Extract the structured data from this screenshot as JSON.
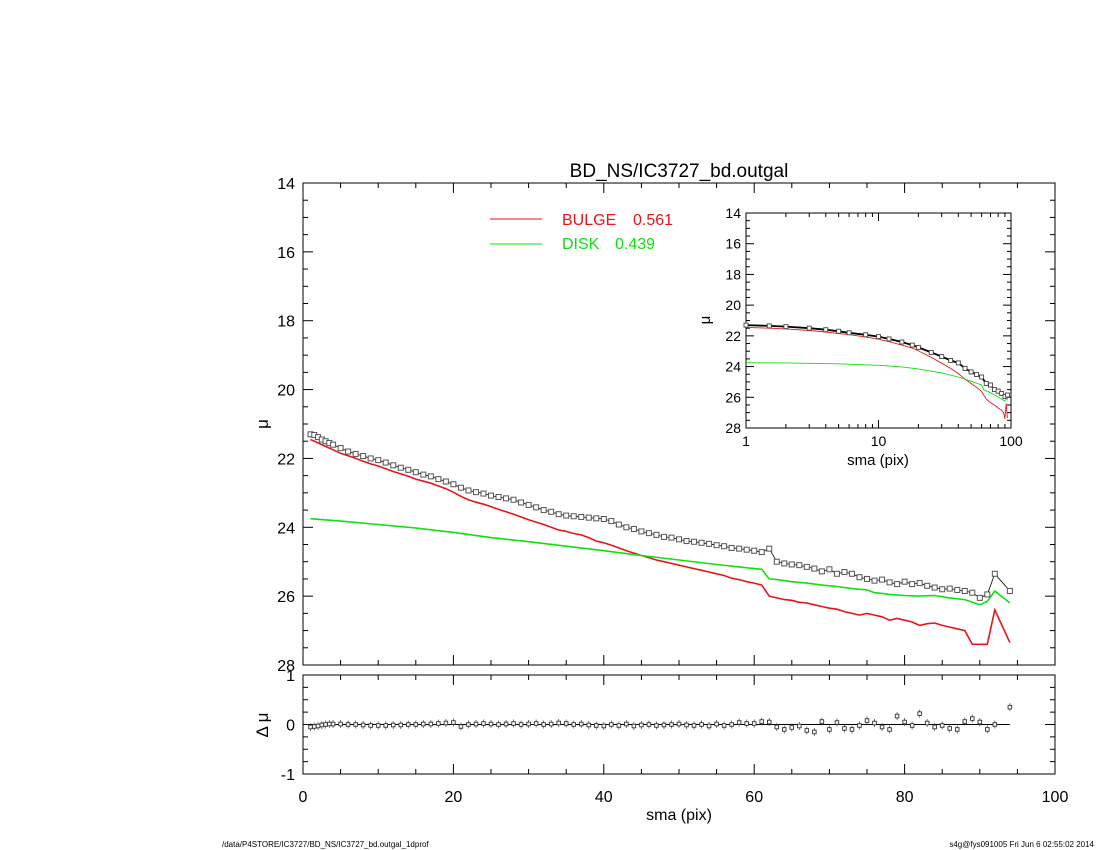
{
  "chart_data": [
    {
      "type": "line",
      "title": "BD_NS/IC3727_bd.outgal",
      "xlabel": "",
      "ylabel": "μ",
      "xlim": [
        0,
        100
      ],
      "ylim": [
        28,
        14
      ],
      "y_inverted": true,
      "yticks": [
        14,
        16,
        18,
        20,
        22,
        24,
        26,
        28
      ],
      "grid": false,
      "legend_position": "top-center",
      "series": [
        {
          "name": "data",
          "style": "open squares with error bars + black line",
          "x": [
            1,
            1.5,
            2,
            2.5,
            3,
            3.5,
            4,
            5,
            6,
            7,
            8,
            9,
            10,
            11,
            12,
            13,
            14,
            15,
            16,
            17,
            18,
            19,
            20,
            21,
            22,
            23,
            24,
            25,
            26,
            27,
            28,
            29,
            30,
            31,
            32,
            33,
            34,
            35,
            36,
            37,
            38,
            39,
            40,
            41,
            42,
            43,
            44,
            45,
            46,
            47,
            48,
            49,
            50,
            51,
            52,
            53,
            54,
            55,
            56,
            57,
            58,
            59,
            60,
            61,
            62,
            63,
            64,
            65,
            66,
            67,
            68,
            69,
            70,
            71,
            72,
            73,
            74,
            75,
            76,
            77,
            78,
            79,
            80,
            81,
            82,
            83,
            84,
            85,
            86,
            87,
            88,
            89,
            90,
            91,
            92,
            94
          ],
          "y": [
            21.3,
            21.32,
            21.38,
            21.45,
            21.5,
            21.55,
            21.6,
            21.7,
            21.8,
            21.87,
            21.93,
            22.0,
            22.05,
            22.12,
            22.2,
            22.27,
            22.33,
            22.4,
            22.47,
            22.52,
            22.6,
            22.67,
            22.75,
            22.85,
            22.93,
            22.98,
            23.02,
            23.08,
            23.12,
            23.16,
            23.2,
            23.28,
            23.35,
            23.42,
            23.5,
            23.55,
            23.62,
            23.66,
            23.68,
            23.7,
            23.72,
            23.74,
            23.76,
            23.82,
            23.92,
            24.0,
            24.05,
            24.12,
            24.17,
            24.22,
            24.28,
            24.3,
            24.35,
            24.4,
            24.42,
            24.45,
            24.48,
            24.52,
            24.55,
            24.6,
            24.62,
            24.65,
            24.68,
            24.72,
            24.62,
            25.0,
            25.05,
            25.08,
            25.1,
            25.15,
            25.2,
            25.28,
            25.22,
            25.35,
            25.3,
            25.35,
            25.45,
            25.5,
            25.55,
            25.52,
            25.6,
            25.65,
            25.58,
            25.65,
            25.62,
            25.7,
            25.75,
            25.8,
            25.78,
            25.82,
            25.85,
            25.9,
            26.05,
            25.95,
            25.35,
            25.85
          ]
        },
        {
          "name": "BULGE",
          "color": "#e8141c",
          "x": [
            1,
            2,
            3,
            4,
            5,
            6,
            7,
            8,
            9,
            10,
            11,
            12,
            13,
            14,
            15,
            16,
            17,
            18,
            19,
            20,
            21,
            22,
            23,
            24,
            25,
            26,
            27,
            28,
            29,
            30,
            31,
            32,
            33,
            34,
            35,
            36,
            37,
            38,
            39,
            40,
            41,
            42,
            43,
            44,
            45,
            46,
            47,
            48,
            49,
            50,
            51,
            52,
            53,
            54,
            55,
            56,
            57,
            58,
            59,
            60,
            61,
            62,
            63,
            64,
            65,
            66,
            67,
            68,
            69,
            70,
            71,
            72,
            73,
            74,
            75,
            76,
            77,
            78,
            79,
            80,
            81,
            82,
            83,
            84,
            85,
            86,
            87,
            88,
            89,
            90,
            91,
            92,
            94
          ],
          "y": [
            21.45,
            21.55,
            21.65,
            21.75,
            21.85,
            21.92,
            22.0,
            22.08,
            22.16,
            22.22,
            22.3,
            22.38,
            22.45,
            22.52,
            22.6,
            22.66,
            22.72,
            22.8,
            22.88,
            22.98,
            23.1,
            23.2,
            23.27,
            23.33,
            23.4,
            23.48,
            23.55,
            23.62,
            23.7,
            23.78,
            23.85,
            23.92,
            24.0,
            24.08,
            24.12,
            24.18,
            24.22,
            24.3,
            24.4,
            24.45,
            24.52,
            24.6,
            24.68,
            24.75,
            24.82,
            24.88,
            24.95,
            25.0,
            25.05,
            25.1,
            25.15,
            25.2,
            25.25,
            25.3,
            25.35,
            25.4,
            25.48,
            25.52,
            25.58,
            25.62,
            25.68,
            26.0,
            26.05,
            26.1,
            26.12,
            26.18,
            26.2,
            26.25,
            26.3,
            26.35,
            26.38,
            26.45,
            26.5,
            26.55,
            26.5,
            26.55,
            26.6,
            26.7,
            26.65,
            26.7,
            26.75,
            26.85,
            26.8,
            26.78,
            26.85,
            26.9,
            26.95,
            27.0,
            27.4,
            27.4,
            27.4,
            26.4,
            27.35
          ]
        },
        {
          "name": "DISK",
          "color": "#10e010",
          "x": [
            1,
            5,
            10,
            15,
            20,
            25,
            30,
            35,
            40,
            45,
            50,
            55,
            60,
            61,
            62,
            63,
            65,
            67,
            69,
            71,
            73,
            75,
            76,
            77,
            78,
            80,
            82,
            84,
            86,
            88,
            90,
            91,
            92,
            94
          ],
          "y": [
            23.75,
            23.82,
            23.92,
            24.02,
            24.15,
            24.3,
            24.42,
            24.55,
            24.68,
            24.82,
            24.95,
            25.08,
            25.2,
            25.22,
            25.5,
            25.52,
            25.58,
            25.62,
            25.68,
            25.72,
            25.78,
            25.82,
            25.9,
            25.92,
            25.95,
            25.98,
            26.0,
            25.98,
            26.05,
            26.1,
            26.25,
            26.15,
            25.85,
            26.2
          ]
        }
      ],
      "legend": [
        {
          "label": "BULGE",
          "value": "0.561",
          "color": "#e8141c"
        },
        {
          "label": "DISK",
          "value": "0.439",
          "color": "#10e010"
        }
      ]
    },
    {
      "type": "scatter",
      "title": "",
      "xlabel": "sma (pix)",
      "ylabel": "Δ μ",
      "xlim": [
        0,
        100
      ],
      "ylim": [
        -1,
        1
      ],
      "xticks": [
        0,
        20,
        40,
        60,
        80,
        100
      ],
      "yticks": [
        -1,
        0,
        1
      ],
      "residuals": {
        "x": [
          1,
          1.5,
          2,
          2.5,
          3,
          3.5,
          4,
          5,
          6,
          7,
          8,
          9,
          10,
          11,
          12,
          13,
          14,
          15,
          16,
          17,
          18,
          19,
          20,
          21,
          22,
          23,
          24,
          25,
          26,
          27,
          28,
          29,
          30,
          31,
          32,
          33,
          34,
          35,
          36,
          37,
          38,
          39,
          40,
          41,
          42,
          43,
          44,
          45,
          46,
          47,
          48,
          49,
          50,
          51,
          52,
          53,
          54,
          55,
          56,
          57,
          58,
          59,
          60,
          61,
          62,
          63,
          64,
          65,
          66,
          67,
          68,
          69,
          70,
          71,
          72,
          73,
          74,
          75,
          76,
          77,
          78,
          79,
          80,
          81,
          82,
          83,
          84,
          85,
          86,
          87,
          88,
          89,
          90,
          91,
          92,
          94
        ],
        "y": [
          -0.05,
          -0.04,
          -0.03,
          -0.01,
          0.0,
          0.01,
          0.01,
          0.01,
          0.0,
          0.0,
          -0.01,
          -0.02,
          -0.02,
          -0.02,
          -0.01,
          -0.01,
          0.0,
          0.0,
          0.01,
          0.01,
          0.02,
          0.03,
          0.04,
          -0.04,
          0.0,
          0.01,
          0.02,
          0.01,
          0.0,
          0.01,
          0.02,
          0.0,
          0.01,
          0.02,
          0.0,
          0.01,
          0.03,
          0.02,
          0.0,
          0.01,
          -0.01,
          -0.02,
          -0.03,
          0.0,
          -0.02,
          0.01,
          -0.03,
          -0.01,
          0.0,
          -0.02,
          -0.01,
          0.0,
          0.01,
          -0.01,
          -0.02,
          0.0,
          -0.03,
          0.01,
          -0.02,
          0.0,
          0.04,
          0.02,
          0.02,
          0.06,
          0.05,
          -0.05,
          -0.1,
          -0.06,
          -0.03,
          -0.12,
          -0.15,
          0.06,
          -0.1,
          0.04,
          -0.08,
          -0.1,
          -0.02,
          0.08,
          0.03,
          -0.05,
          -0.1,
          0.17,
          0.05,
          -0.02,
          0.22,
          0.03,
          -0.05,
          -0.02,
          -0.08,
          -0.1,
          0.06,
          0.12,
          0.05,
          -0.1,
          0.0,
          0.35
        ]
      }
    },
    {
      "type": "line",
      "title": "",
      "xlabel": "sma (pix)",
      "ylabel": "μ",
      "x_scale": "log",
      "xlim": [
        1,
        100
      ],
      "ylim": [
        28,
        14
      ],
      "xticks": [
        1,
        10,
        100
      ],
      "yticks": [
        14,
        16,
        18,
        20,
        22,
        24,
        26,
        28
      ],
      "series": [
        {
          "name": "data",
          "x": [
            1,
            1.5,
            2,
            3,
            4,
            5,
            6,
            8,
            10,
            12,
            15,
            18,
            20,
            25,
            30,
            35,
            40,
            45,
            50,
            55,
            60,
            65,
            70,
            75,
            80,
            85,
            90,
            94
          ],
          "y": [
            21.3,
            21.35,
            21.4,
            21.5,
            21.6,
            21.7,
            21.8,
            21.93,
            22.05,
            22.2,
            22.4,
            22.6,
            22.75,
            23.08,
            23.35,
            23.6,
            23.76,
            24.12,
            24.35,
            24.52,
            24.68,
            25.1,
            25.2,
            25.5,
            25.6,
            25.75,
            25.95,
            25.85
          ]
        },
        {
          "name": "BULGE",
          "color": "#e8141c",
          "x": [
            1,
            1.5,
            2,
            3,
            4,
            5,
            6,
            8,
            10,
            12,
            15,
            18,
            20,
            25,
            30,
            35,
            40,
            45,
            50,
            55,
            60,
            65,
            70,
            75,
            80,
            85,
            88,
            90,
            92,
            94
          ],
          "y": [
            21.45,
            21.5,
            21.55,
            21.65,
            21.75,
            21.85,
            21.92,
            22.08,
            22.22,
            22.38,
            22.6,
            22.8,
            22.98,
            23.4,
            23.78,
            24.12,
            24.45,
            24.82,
            25.1,
            25.35,
            25.62,
            26.12,
            26.35,
            26.5,
            26.7,
            26.85,
            27.0,
            27.4,
            26.4,
            27.35
          ]
        },
        {
          "name": "DISK",
          "color": "#10e010",
          "x": [
            1,
            2,
            5,
            10,
            15,
            20,
            25,
            30,
            40,
            50,
            60,
            62,
            70,
            80,
            90,
            92,
            94
          ],
          "y": [
            23.75,
            23.76,
            23.82,
            23.92,
            24.02,
            24.15,
            24.3,
            24.42,
            24.68,
            24.95,
            25.2,
            25.5,
            25.7,
            25.98,
            26.25,
            25.85,
            26.2
          ]
        }
      ]
    }
  ],
  "footer": {
    "left": "/data/P4STORE/IC3727/BD_NS/IC3727_bd.outgal_1dprof",
    "right": "s4g@fys091005  Fri Jun  6 02:55:02 2014"
  }
}
